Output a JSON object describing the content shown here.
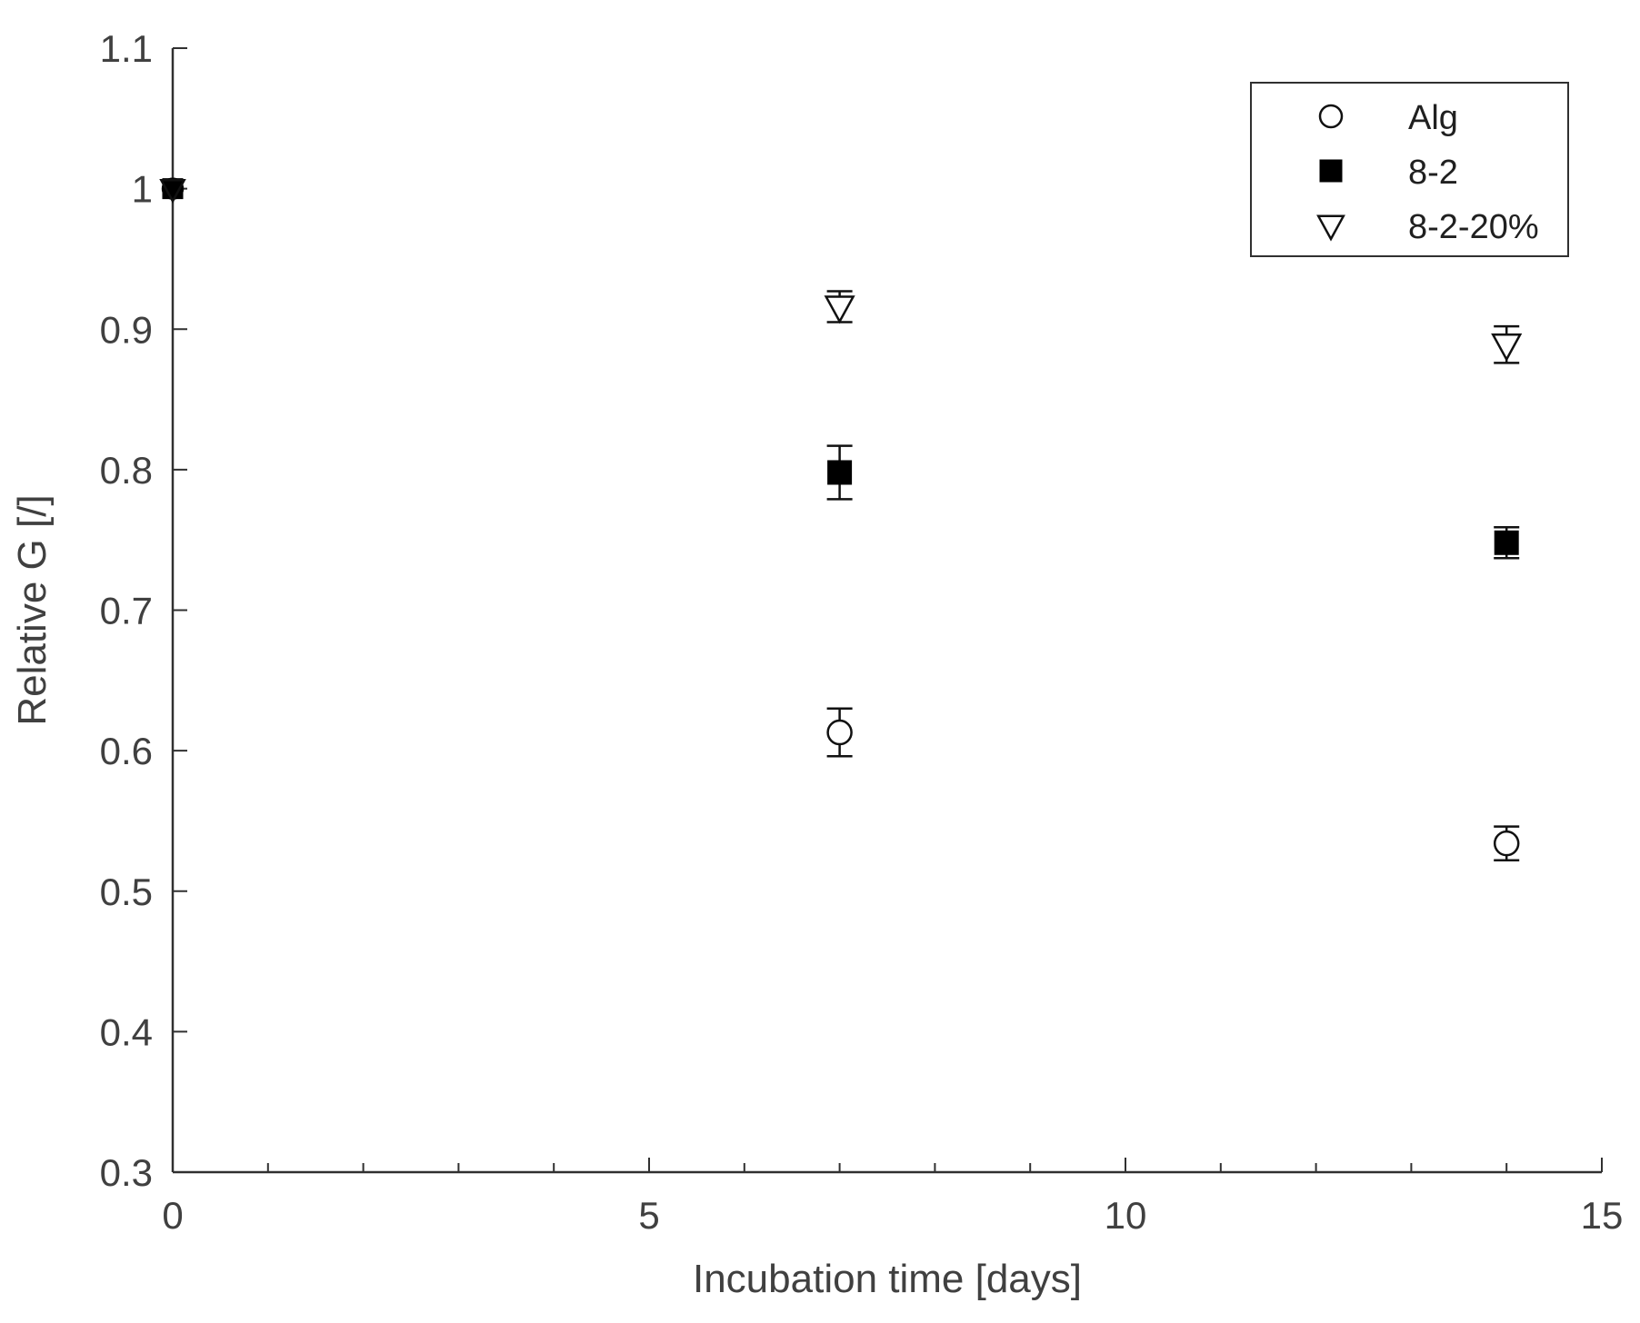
{
  "chart_data": {
    "type": "scatter",
    "title": "",
    "xlabel": "Incubation time [days]",
    "ylabel": "Relative G [/]",
    "xlim": [
      0,
      15
    ],
    "ylim": [
      0.3,
      1.1
    ],
    "xticks": [
      0,
      5,
      10,
      15
    ],
    "xtick_labels": [
      "0",
      "5",
      "10",
      "15"
    ],
    "x_minor_ticks": [
      1,
      2,
      3,
      4,
      6,
      7,
      8,
      9,
      11,
      12,
      13,
      14
    ],
    "yticks": [
      0.3,
      0.4,
      0.5,
      0.6,
      0.7,
      0.8,
      0.9,
      1.0,
      1.1
    ],
    "ytick_labels": [
      "0.3",
      "0.4",
      "0.5",
      "0.6",
      "0.7",
      "0.8",
      "0.9",
      "1",
      "1.1"
    ],
    "grid": false,
    "legend_position": "top-right",
    "series": [
      {
        "name": "Alg",
        "marker": "circle-open",
        "x": [
          0,
          7,
          14
        ],
        "y": [
          1.0,
          0.613,
          0.534
        ],
        "error": [
          0.0,
          0.017,
          0.012
        ]
      },
      {
        "name": "8-2",
        "marker": "square-filled",
        "x": [
          0,
          7,
          14
        ],
        "y": [
          1.0,
          0.798,
          0.748
        ],
        "error": [
          0.0,
          0.019,
          0.011
        ]
      },
      {
        "name": "8-2-20%",
        "marker": "triangle-down-open",
        "x": [
          0,
          7,
          14
        ],
        "y": [
          1.0,
          0.916,
          0.889
        ],
        "error": [
          0.0,
          0.011,
          0.013
        ]
      }
    ]
  }
}
